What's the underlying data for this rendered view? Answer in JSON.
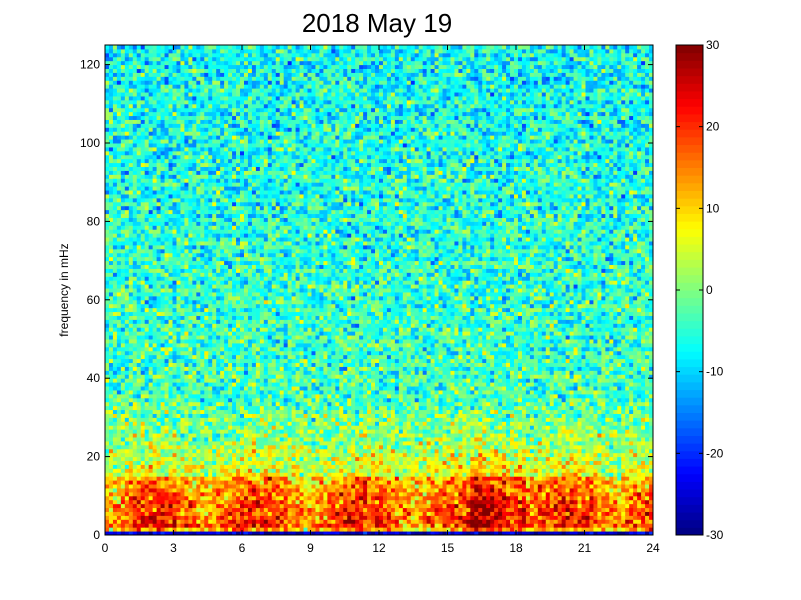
{
  "chart_data": {
    "type": "heatmap",
    "title": "2018 May 19",
    "xlabel": "",
    "ylabel": "frequency in mHz",
    "xlim": [
      0,
      24
    ],
    "ylim": [
      0,
      125
    ],
    "xticks": [
      0,
      3,
      6,
      9,
      12,
      15,
      18,
      21,
      24
    ],
    "yticks": [
      0,
      20,
      40,
      60,
      80,
      100,
      120
    ],
    "colorbar": {
      "colormap": "jet",
      "range": [
        -30,
        30
      ],
      "ticks": [
        30,
        20,
        10,
        0,
        -10,
        -20,
        -30
      ]
    },
    "grid": false,
    "description_of_values": {
      "background_level": -8,
      "low_frequency_band_mHz": [
        0,
        35
      ],
      "strong_band_mHz": [
        2,
        15
      ],
      "strong_band_level": 25,
      "lowest_row_level": -25
    }
  }
}
